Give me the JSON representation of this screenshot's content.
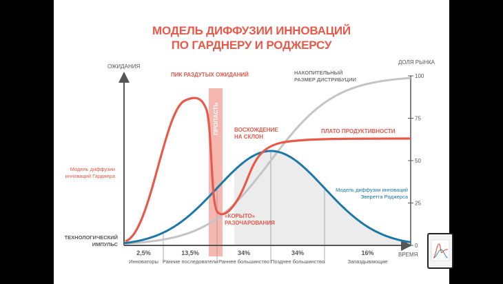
{
  "title_line1": "МОДЕЛЬ ДИФФУЗИИ ИННОВАЦИЙ",
  "title_line2": "ПО ГАРДНЕРУ И РОДЖЕРСУ",
  "chart_data": {
    "type": "line",
    "title": "МОДЕЛЬ ДИФФУЗИИ ИННОВАЦИЙ ПО ГАРДНЕРУ И РОДЖЕРСУ",
    "ylabel_left": "ОЖИДАНИЯ",
    "ylabel_right": "ДОЛЯ РЫНКА",
    "xlabel": "ВРЕМЯ",
    "y_ticks_right": [
      0,
      25,
      50,
      75,
      100
    ],
    "ylim_right": [
      0,
      100
    ],
    "grid": false,
    "colors": {
      "gartner": "#e8594a",
      "rogers": "#1a77a6",
      "cumulative": "#c4c4c4",
      "trough_band": "#f3aaa0",
      "bell_fill": "#ececec",
      "axis": "#555555"
    },
    "segments": [
      {
        "label": "Инноваторы",
        "percent": "2,5%"
      },
      {
        "label": "Ранние последователи",
        "percent": "13,5%"
      },
      {
        "label": "Раннее большинство",
        "percent": "34%"
      },
      {
        "label": "Позднее большинство",
        "percent": "34%"
      },
      {
        "label": "Запаздывающие",
        "percent": "16%"
      }
    ],
    "series": [
      {
        "name": "Модель диффузии инноваций Гарднера"
      },
      {
        "name": "Модель диффузии инноваций Эверетта Роджерса"
      },
      {
        "name": "НАКОПИТЕЛЬНЫЙ РАЗМЕР ДИСТРИБУЦИИ"
      }
    ],
    "annotations": {
      "peak": "ПИК РАЗДУТЫХ ОЖИДАНИЙ",
      "chasm": "ПРОПАСТЬ",
      "slope": [
        "ВОСХОЖДЕНИЕ",
        "НА СКЛОН"
      ],
      "plateau": "ПЛАТО ПРОДУКТИВНОСТИ",
      "trough": [
        "«КОРЫТО»",
        "РАЗОЧАРОВАНИЯ"
      ],
      "cumulative": [
        "НАКОПИТЕЛЬНЫЙ",
        "РАЗМЕР ДИСТРИБУЦИИ"
      ],
      "gartner": [
        "Модель диффузии",
        "инноваций Гарднера"
      ],
      "rogers": [
        "Модель диффузии инноваций",
        "Эверетта Роджерса"
      ],
      "trigger": [
        "ТЕХНОЛОГИЧЕСКИЙ",
        "ИМПУЛЬС"
      ]
    }
  }
}
